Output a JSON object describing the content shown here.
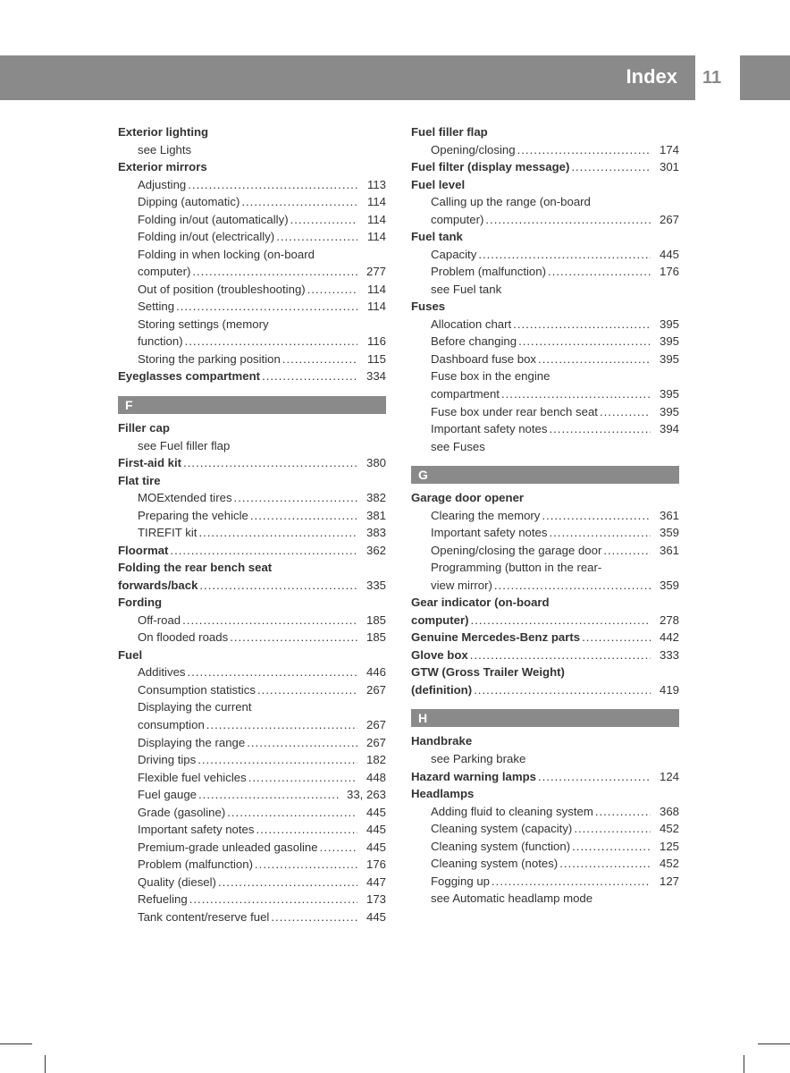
{
  "header": {
    "title": "Index",
    "page_number": "11"
  },
  "colors": {
    "band": "#8a8a8a",
    "text": "#333333",
    "bg": "#ffffff"
  },
  "left_col": [
    {
      "type": "head",
      "label": "Exterior lighting"
    },
    {
      "type": "sub",
      "label": "see Lights"
    },
    {
      "type": "head",
      "label": "Exterior mirrors"
    },
    {
      "type": "sub",
      "label": "Adjusting",
      "pg": "113"
    },
    {
      "type": "sub",
      "label": "Dipping (automatic)",
      "pg": "114"
    },
    {
      "type": "sub",
      "label": "Folding in/out (automatically)",
      "pg": "114"
    },
    {
      "type": "sub",
      "label": "Folding in/out (electrically)",
      "pg": "114"
    },
    {
      "type": "sub",
      "label": "Folding in when locking (on-board"
    },
    {
      "type": "sub",
      "label": "computer)",
      "pg": "277"
    },
    {
      "type": "sub",
      "label": "Out of position (troubleshooting)",
      "pg": "114"
    },
    {
      "type": "sub",
      "label": "Setting",
      "pg": "114"
    },
    {
      "type": "sub",
      "label": "Storing settings (memory"
    },
    {
      "type": "sub",
      "label": "function)",
      "pg": "116"
    },
    {
      "type": "sub",
      "label": "Storing the parking position",
      "pg": "115"
    },
    {
      "type": "headpg",
      "label": "Eyeglasses compartment",
      "pg": "334"
    },
    {
      "type": "letter",
      "label": "F"
    },
    {
      "type": "head",
      "label": "Filler cap"
    },
    {
      "type": "sub",
      "label": "see Fuel filler flap"
    },
    {
      "type": "headpg",
      "label": "First-aid kit",
      "pg": "380"
    },
    {
      "type": "head",
      "label": "Flat tire"
    },
    {
      "type": "sub",
      "label": "MOExtended tires",
      "pg": "382"
    },
    {
      "type": "sub",
      "label": "Preparing the vehicle",
      "pg": "381"
    },
    {
      "type": "sub",
      "label": "TIREFIT kit",
      "pg": "383"
    },
    {
      "type": "headpg",
      "label": "Floormat",
      "pg": "362"
    },
    {
      "type": "head",
      "label": "Folding the rear bench seat"
    },
    {
      "type": "headpg",
      "label": "forwards/back",
      "pg": "335"
    },
    {
      "type": "head",
      "label": "Fording"
    },
    {
      "type": "sub",
      "label": "Off-road",
      "pg": "185"
    },
    {
      "type": "sub",
      "label": "On flooded roads",
      "pg": "185"
    },
    {
      "type": "head",
      "label": "Fuel"
    },
    {
      "type": "sub",
      "label": "Additives",
      "pg": "446"
    },
    {
      "type": "sub",
      "label": "Consumption statistics",
      "pg": "267"
    },
    {
      "type": "sub",
      "label": "Displaying the current"
    },
    {
      "type": "sub",
      "label": "consumption",
      "pg": "267"
    },
    {
      "type": "sub",
      "label": "Displaying the range",
      "pg": "267"
    },
    {
      "type": "sub",
      "label": "Driving tips",
      "pg": "182"
    },
    {
      "type": "sub",
      "label": "Flexible fuel vehicles",
      "pg": "448"
    },
    {
      "type": "sub",
      "label": "Fuel gauge",
      "pg": "33, 263"
    },
    {
      "type": "sub",
      "label": "Grade (gasoline)",
      "pg": "445"
    },
    {
      "type": "sub",
      "label": "Important safety notes",
      "pg": "445"
    },
    {
      "type": "sub",
      "label": "Premium-grade unleaded gasoline",
      "pg": "445"
    },
    {
      "type": "sub",
      "label": "Problem (malfunction)",
      "pg": "176"
    },
    {
      "type": "sub",
      "label": "Quality (diesel)",
      "pg": "447"
    },
    {
      "type": "sub",
      "label": "Refueling",
      "pg": "173"
    },
    {
      "type": "sub",
      "label": "Tank content/reserve fuel",
      "pg": "445"
    }
  ],
  "right_col": [
    {
      "type": "head",
      "label": "Fuel filler flap"
    },
    {
      "type": "sub",
      "label": "Opening/closing",
      "pg": "174"
    },
    {
      "type": "headpg",
      "label": "Fuel filter (display message)",
      "pg": "301"
    },
    {
      "type": "head",
      "label": "Fuel level"
    },
    {
      "type": "sub",
      "label": "Calling up the range (on-board"
    },
    {
      "type": "sub",
      "label": "computer)",
      "pg": "267"
    },
    {
      "type": "head",
      "label": "Fuel tank"
    },
    {
      "type": "sub",
      "label": "Capacity",
      "pg": "445"
    },
    {
      "type": "sub",
      "label": "Problem (malfunction)",
      "pg": "176"
    },
    {
      "type": "sub",
      "label": "see Fuel tank"
    },
    {
      "type": "head",
      "label": "Fuses"
    },
    {
      "type": "sub",
      "label": "Allocation chart",
      "pg": "395"
    },
    {
      "type": "sub",
      "label": "Before changing",
      "pg": "395"
    },
    {
      "type": "sub",
      "label": "Dashboard fuse box",
      "pg": "395"
    },
    {
      "type": "sub",
      "label": "Fuse box in the engine"
    },
    {
      "type": "sub",
      "label": "compartment",
      "pg": "395"
    },
    {
      "type": "sub",
      "label": "Fuse box under rear bench seat",
      "pg": "395"
    },
    {
      "type": "sub",
      "label": "Important safety notes",
      "pg": "394"
    },
    {
      "type": "sub",
      "label": "see Fuses"
    },
    {
      "type": "letter",
      "label": "G"
    },
    {
      "type": "head",
      "label": "Garage door opener"
    },
    {
      "type": "sub",
      "label": "Clearing the memory",
      "pg": "361"
    },
    {
      "type": "sub",
      "label": "Important safety notes",
      "pg": "359"
    },
    {
      "type": "sub",
      "label": "Opening/closing the garage door",
      "pg": "361"
    },
    {
      "type": "sub",
      "label": "Programming (button in the rear-"
    },
    {
      "type": "sub",
      "label": "view mirror)",
      "pg": "359"
    },
    {
      "type": "head",
      "label": "Gear indicator (on-board"
    },
    {
      "type": "headpg",
      "label": "computer)",
      "pg": "278"
    },
    {
      "type": "headpg",
      "label": "Genuine Mercedes-Benz parts",
      "pg": "442"
    },
    {
      "type": "headpg",
      "label": "Glove box",
      "pg": "333"
    },
    {
      "type": "head",
      "label": "GTW (Gross Trailer Weight)"
    },
    {
      "type": "headpg",
      "label": "(definition)",
      "pg": "419"
    },
    {
      "type": "letter",
      "label": "H"
    },
    {
      "type": "head",
      "label": "Handbrake"
    },
    {
      "type": "sub",
      "label": "see Parking brake"
    },
    {
      "type": "headpg",
      "label": "Hazard warning lamps",
      "pg": "124"
    },
    {
      "type": "head",
      "label": "Headlamps"
    },
    {
      "type": "sub",
      "label": "Adding fluid to cleaning system",
      "pg": "368"
    },
    {
      "type": "sub",
      "label": "Cleaning system (capacity)",
      "pg": "452"
    },
    {
      "type": "sub",
      "label": "Cleaning system (function)",
      "pg": "125"
    },
    {
      "type": "sub",
      "label": "Cleaning system (notes)",
      "pg": "452"
    },
    {
      "type": "sub",
      "label": "Fogging up",
      "pg": "127"
    },
    {
      "type": "sub",
      "label": "see Automatic headlamp mode"
    }
  ]
}
